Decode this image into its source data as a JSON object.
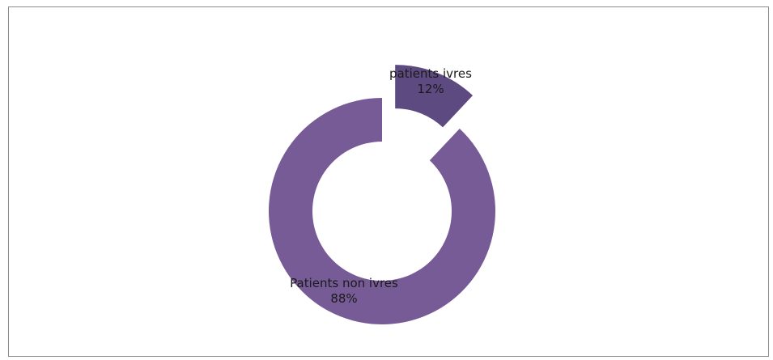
{
  "chart_data": {
    "type": "pie",
    "style": "donut",
    "exploded_slice": "patients ivres",
    "title": "",
    "slices": [
      {
        "label": "patients ivres",
        "value": 12,
        "display": "12%",
        "color": "#5d4a80"
      },
      {
        "label": "Patients non ivres",
        "value": 88,
        "display": "88%",
        "color": "#775b96"
      }
    ]
  }
}
